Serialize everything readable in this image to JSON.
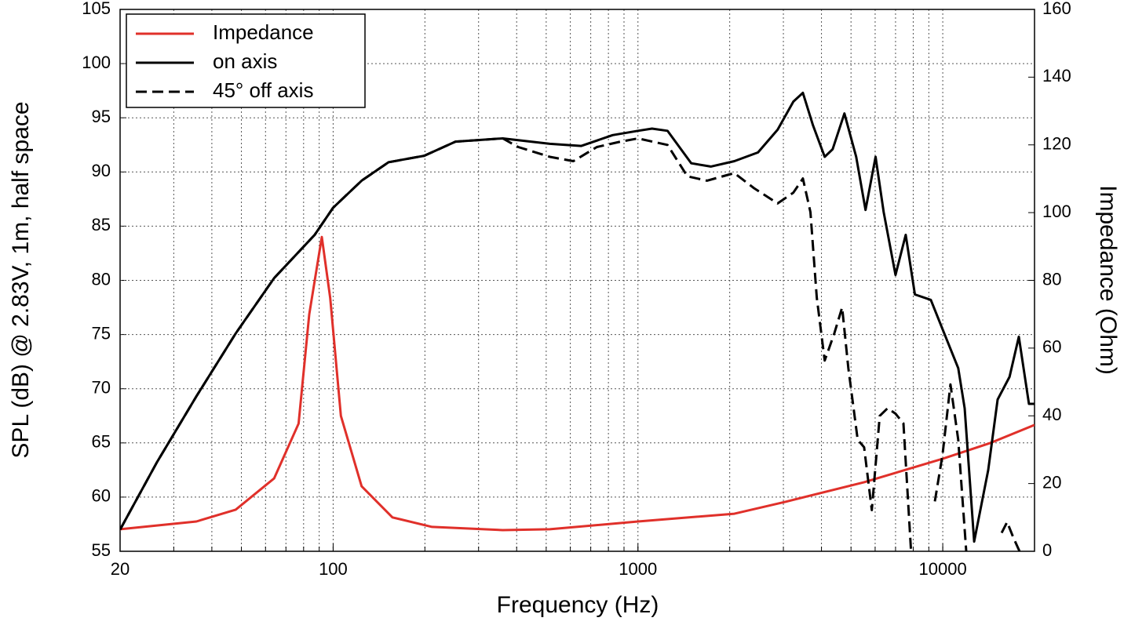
{
  "chart_data": {
    "type": "line",
    "xlabel": "Frequency (Hz)",
    "ylabel": "SPL (dB) @ 2.83V, 1m, half space",
    "y2label": "Impedance (Ohm)",
    "xscale": "log",
    "xlim": [
      20,
      20000
    ],
    "xticks": [
      20,
      100,
      1000,
      10000
    ],
    "ylim": [
      55,
      105
    ],
    "yticks": [
      55,
      60,
      65,
      70,
      75,
      80,
      85,
      90,
      95,
      100,
      105
    ],
    "y2lim": [
      0,
      160
    ],
    "y2ticks": [
      0,
      20,
      40,
      60,
      80,
      100,
      120,
      140,
      160
    ],
    "grid": true,
    "legend": "upper left",
    "series": [
      {
        "name": "Impedance",
        "color": "#e0302a",
        "dash": false,
        "axis": "y2",
        "x": [
          20,
          35.6,
          47.9,
          64,
          77,
          83.5,
          91.8,
          97.8,
          106,
          124,
          156.5,
          211,
          360,
          514,
          1000,
          2072,
          3046,
          5520,
          9980,
          14260,
          20000
        ],
        "values": [
          6.5,
          8.8,
          12.3,
          21.5,
          37.7,
          70,
          92.8,
          74.8,
          40,
          19.2,
          10,
          7.2,
          6.25,
          6.5,
          8.8,
          11.1,
          14.6,
          20.4,
          27.3,
          31.9,
          37.3
        ]
      },
      {
        "name": "on axis",
        "color": "#000000",
        "dash": false,
        "x": [
          20,
          26.4,
          35.6,
          47.9,
          64,
          87,
          100,
          124,
          152,
          199,
          252,
          360,
          514,
          652,
          826,
          1000,
          1112,
          1250,
          1496,
          1734,
          2072,
          2477,
          2872,
          3236,
          3476,
          3752,
          4100,
          4352,
          4756,
          5200,
          5580,
          6020,
          6400,
          7000,
          7560,
          8100,
          9140,
          9980,
          11240,
          11800,
          12680,
          14100,
          15140,
          16560,
          17760,
          19180,
          20000
        ],
        "values": [
          57,
          63.2,
          69.3,
          75.1,
          80.2,
          84.2,
          86.7,
          89.2,
          90.9,
          91.5,
          92.8,
          93.1,
          92.6,
          92.4,
          93.4,
          93.8,
          94,
          93.8,
          90.8,
          90.5,
          91,
          91.8,
          93.9,
          96.5,
          97.3,
          94.3,
          91.4,
          92.1,
          95.4,
          91.4,
          86.5,
          91.4,
          86.3,
          80.5,
          84.2,
          78.7,
          78.2,
          75.5,
          71.9,
          68.2,
          55.9,
          62.5,
          69,
          71.1,
          74.8,
          68.6,
          68.6
        ]
      },
      {
        "name": "45° off axis",
        "color": "#000000",
        "dash": true,
        "x": [
          20,
          26.4,
          35.6,
          47.9,
          64,
          87,
          100,
          124,
          152,
          199,
          252,
          360,
          405,
          514,
          614,
          733,
          877,
          1000,
          1250,
          1452,
          1684,
          2072,
          2404,
          2872,
          3236,
          3476,
          3680,
          3862,
          4100,
          4406,
          4676,
          4900,
          5260,
          5520,
          5850,
          6210,
          6590,
          7000,
          7430,
          7870,
          8500,
          9420,
          9980,
          10600,
          11240,
          11940,
          13500,
          15600,
          16260,
          17020,
          17860
        ],
        "values": [
          57,
          63.2,
          69.3,
          75.1,
          80.2,
          84.2,
          86.7,
          89.2,
          90.9,
          91.5,
          92.8,
          93.1,
          92.3,
          91.4,
          91,
          92.3,
          92.8,
          93.1,
          92.5,
          89.6,
          89.2,
          89.9,
          88.5,
          87.1,
          88.1,
          89.4,
          86.3,
          78.4,
          72.6,
          75.1,
          77.5,
          71.9,
          65.3,
          64.6,
          58.8,
          67.5,
          68.2,
          67.7,
          66.8,
          55,
          null,
          59.6,
          63.9,
          70.4,
          65.3,
          55,
          null,
          56.7,
          57.7,
          56.3,
          55
        ]
      }
    ]
  }
}
